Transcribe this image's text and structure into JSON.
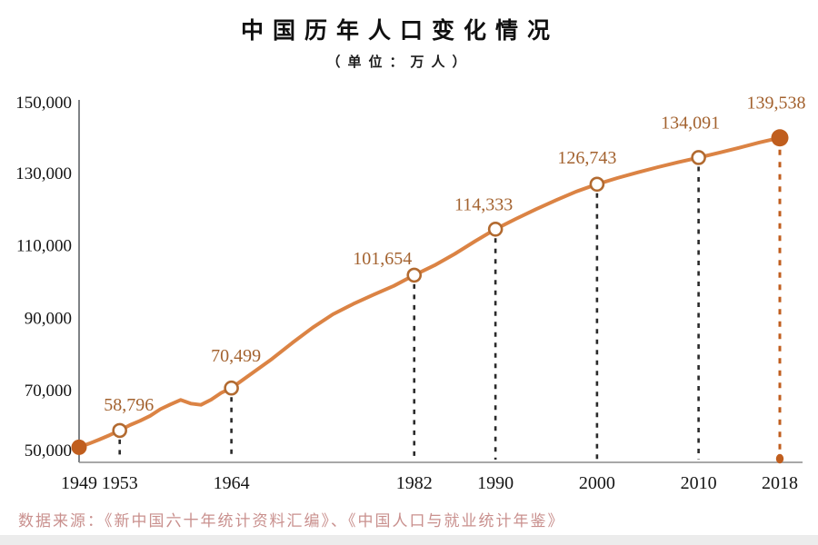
{
  "header": {
    "title": "中国历年人口变化情况",
    "subtitle": "（单位：万人）"
  },
  "source": {
    "text": "数据来源：《新中国六十年统计资料汇编》、《中国人口与就业统计年鉴》"
  },
  "chart_data": {
    "type": "line",
    "title": "中国历年人口变化情况",
    "unit_note": "（单位：万人）",
    "xlabel": "",
    "ylabel": "",
    "xlim": [
      1949,
      2018
    ],
    "ylim": [
      50000,
      150000
    ],
    "grid": false,
    "legend": null,
    "yticks": [
      {
        "value": 50000,
        "label": "50,000"
      },
      {
        "value": 70000,
        "label": "70,000"
      },
      {
        "value": 90000,
        "label": "90,000"
      },
      {
        "value": 110000,
        "label": "110,000"
      },
      {
        "value": 130000,
        "label": "130,000"
      },
      {
        "value": 150000,
        "label": "150,000"
      }
    ],
    "points": [
      {
        "year": 1949,
        "x_label": "1949",
        "value": 54167,
        "value_label": null,
        "marker": "filled",
        "leader": "none"
      },
      {
        "year": 1953,
        "x_label": "1953",
        "value": 58796,
        "value_label": "58,796",
        "marker": "open",
        "leader": "dark"
      },
      {
        "year": 1964,
        "x_label": "1964",
        "value": 70499,
        "value_label": "70,499",
        "marker": "open",
        "leader": "dark"
      },
      {
        "year": 1982,
        "x_label": "1982",
        "value": 101654,
        "value_label": "101,654",
        "marker": "open",
        "leader": "dark"
      },
      {
        "year": 1990,
        "x_label": "1990",
        "value": 114333,
        "value_label": "114,333",
        "marker": "open",
        "leader": "dark"
      },
      {
        "year": 2000,
        "x_label": "2000",
        "value": 126743,
        "value_label": "126,743",
        "marker": "open",
        "leader": "dark"
      },
      {
        "year": 2010,
        "x_label": "2010",
        "value": 134091,
        "value_label": "134,091",
        "marker": "open",
        "leader": "dark"
      },
      {
        "year": 2018,
        "x_label": "2018",
        "value": 139538,
        "value_label": "139,538",
        "marker": "filled",
        "leader": "orange"
      }
    ],
    "curve_points": [
      [
        1949,
        54167
      ],
      [
        1950,
        55196
      ],
      [
        1951,
        56300
      ],
      [
        1952,
        57482
      ],
      [
        1953,
        58796
      ],
      [
        1954,
        60266
      ],
      [
        1955,
        61465
      ],
      [
        1956,
        62828
      ],
      [
        1957,
        64653
      ],
      [
        1958,
        65994
      ],
      [
        1959,
        67207
      ],
      [
        1960,
        66207
      ],
      [
        1961,
        65859
      ],
      [
        1962,
        67295
      ],
      [
        1963,
        69172
      ],
      [
        1964,
        70499
      ],
      [
        1966,
        74542
      ],
      [
        1968,
        78534
      ],
      [
        1970,
        82992
      ],
      [
        1972,
        87177
      ],
      [
        1974,
        90859
      ],
      [
        1976,
        93717
      ],
      [
        1978,
        96259
      ],
      [
        1980,
        98705
      ],
      [
        1982,
        101654
      ],
      [
        1984,
        104357
      ],
      [
        1986,
        107507
      ],
      [
        1988,
        111026
      ],
      [
        1990,
        114333
      ],
      [
        1992,
        117171
      ],
      [
        1994,
        119850
      ],
      [
        1996,
        122389
      ],
      [
        1998,
        124761
      ],
      [
        2000,
        126743
      ],
      [
        2002,
        128453
      ],
      [
        2004,
        129988
      ],
      [
        2006,
        131448
      ],
      [
        2008,
        132802
      ],
      [
        2010,
        134091
      ],
      [
        2012,
        135404
      ],
      [
        2014,
        136782
      ],
      [
        2016,
        138271
      ],
      [
        2018,
        139538
      ]
    ],
    "colors": {
      "line": "#DB8344",
      "marker_stroke": "#B26A30",
      "marker_fill": "#FFFFFF",
      "endpoint_fill": "#C05E1E",
      "value_label": "#A3622F",
      "leader_dark": "#2A2A2A",
      "leader_orange": "#C05E1E",
      "axis_x": "#8C8C8C",
      "axis_y": "#5F6368",
      "tick_text": "#141414",
      "title_text": "#101010",
      "source_text": "#C9908E",
      "bottom_band": "#ECECEC"
    }
  }
}
